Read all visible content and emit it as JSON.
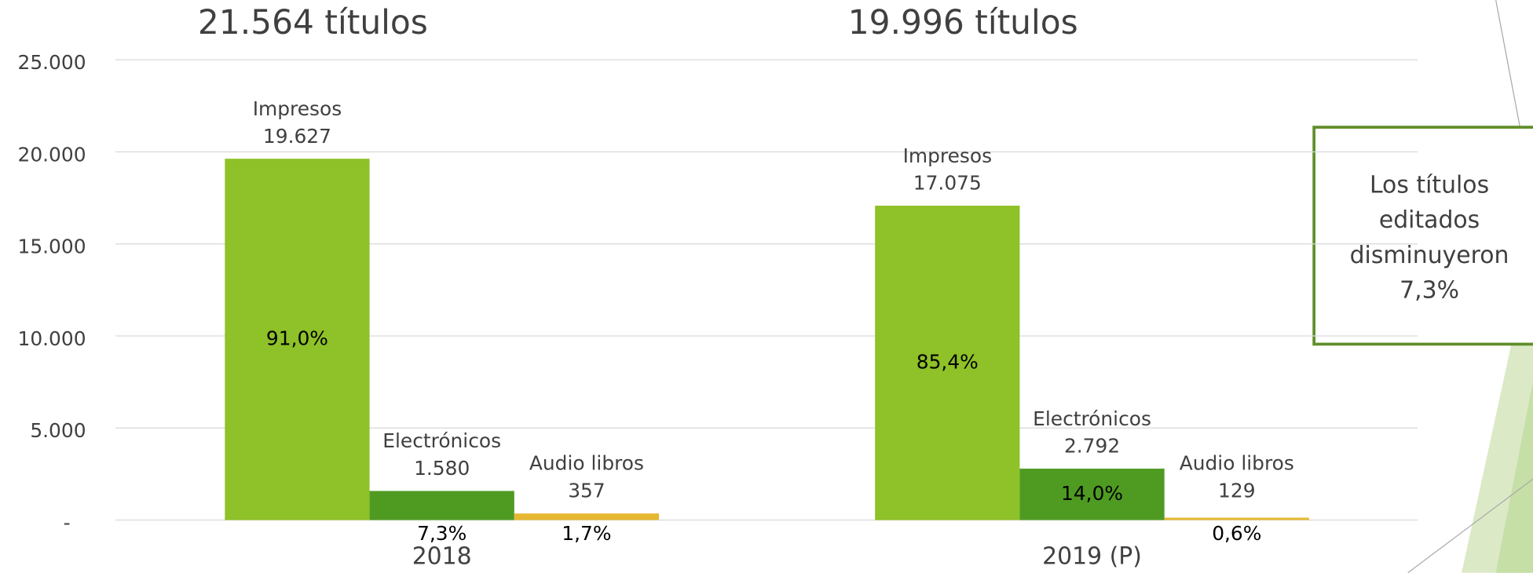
{
  "chart_data": {
    "type": "bar",
    "categories": [
      "2018",
      "2019 (P)"
    ],
    "category_totals": [
      "21.564 títulos",
      "19.996 títulos"
    ],
    "series": [
      {
        "name": "Impresos",
        "color": "#8fc128",
        "values": [
          19627,
          17075
        ],
        "value_labels": [
          "19.627",
          "17.075"
        ],
        "share_labels": [
          "91,0%",
          "85,4%"
        ]
      },
      {
        "name": "Electrónicos",
        "color": "#4f9b22",
        "values": [
          1580,
          2792
        ],
        "value_labels": [
          "1.580",
          "2.792"
        ],
        "share_labels": [
          "7,3%",
          "14,0%"
        ]
      },
      {
        "name": "Audio libros",
        "color": "#e6b832",
        "values": [
          357,
          129
        ],
        "value_labels": [
          "357",
          "129"
        ],
        "share_labels": [
          "1,7%",
          "0,6%"
        ]
      }
    ],
    "ylim": [
      0,
      25000
    ],
    "yticks": [
      {
        "value": 0,
        "label": "-"
      },
      {
        "value": 5000,
        "label": "5.000"
      },
      {
        "value": 10000,
        "label": "10.000"
      },
      {
        "value": 15000,
        "label": "15.000"
      },
      {
        "value": 20000,
        "label": "20.000"
      },
      {
        "value": 25000,
        "label": "25.000"
      }
    ],
    "grid": true,
    "annotation": [
      "Los títulos",
      "editados",
      "disminuyeron",
      "7,3%"
    ]
  }
}
